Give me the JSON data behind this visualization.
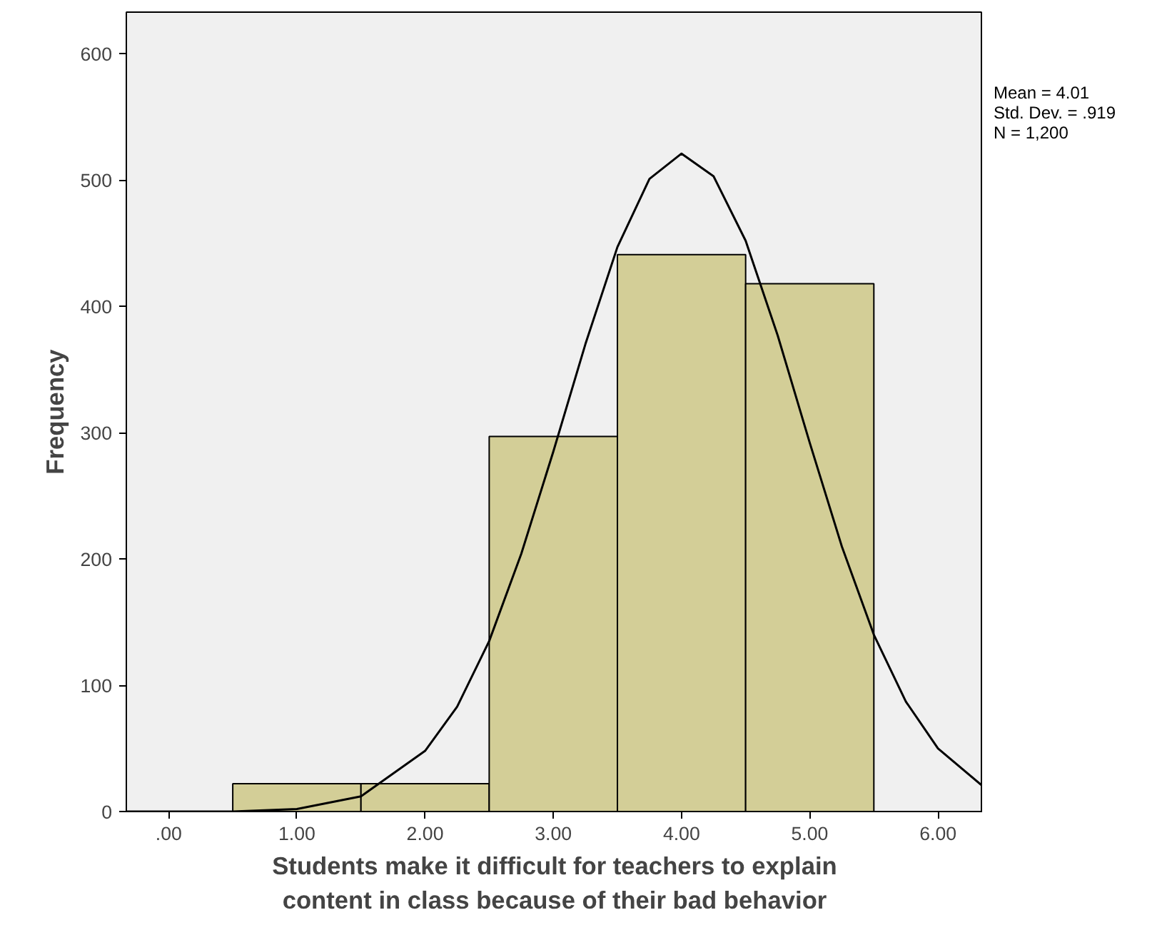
{
  "chart_data": {
    "type": "histogram",
    "xlabel": "Students make it difficult for teachers to explain\ncontent in class because of their bad behavior",
    "ylabel": "Frequency",
    "bins": [
      0.5,
      1.5,
      2.5,
      3.5,
      4.5,
      5.5
    ],
    "values": [
      22,
      22,
      297,
      441,
      418
    ],
    "color": "#d3ce97",
    "series": [
      {
        "type": "line",
        "color": "#000000",
        "x": [
          -0.33,
          0,
          0.5,
          1,
          1.5,
          2,
          2.25,
          2.5,
          2.75,
          3,
          3.25,
          3.5,
          3.75,
          4,
          4.25,
          4.5,
          4.75,
          5,
          5.25,
          5.5,
          5.75,
          6,
          6.35
        ],
        "values": [
          0,
          0,
          0,
          2,
          12,
          48,
          83,
          135,
          204,
          285,
          370,
          447,
          501,
          521,
          503,
          452,
          377,
          292,
          210,
          140,
          87,
          50,
          20
        ]
      }
    ],
    "xlim": [
      -0.33,
      6.35
    ],
    "ylim": [
      0,
      633
    ],
    "xticks": [
      {
        "value": 0,
        "label": ".00"
      },
      {
        "value": 1,
        "label": "1.00"
      },
      {
        "value": 2,
        "label": "2.00"
      },
      {
        "value": 3,
        "label": "3.00"
      },
      {
        "value": 4,
        "label": "4.00"
      },
      {
        "value": 5,
        "label": "5.00"
      },
      {
        "value": 6,
        "label": "6.00"
      }
    ],
    "yticks": [
      0,
      100,
      200,
      300,
      400,
      500,
      600
    ],
    "grid": false,
    "annotations": [
      "Mean = 4.01",
      "Std. Dev. = .919",
      "N = 1,200"
    ]
  }
}
